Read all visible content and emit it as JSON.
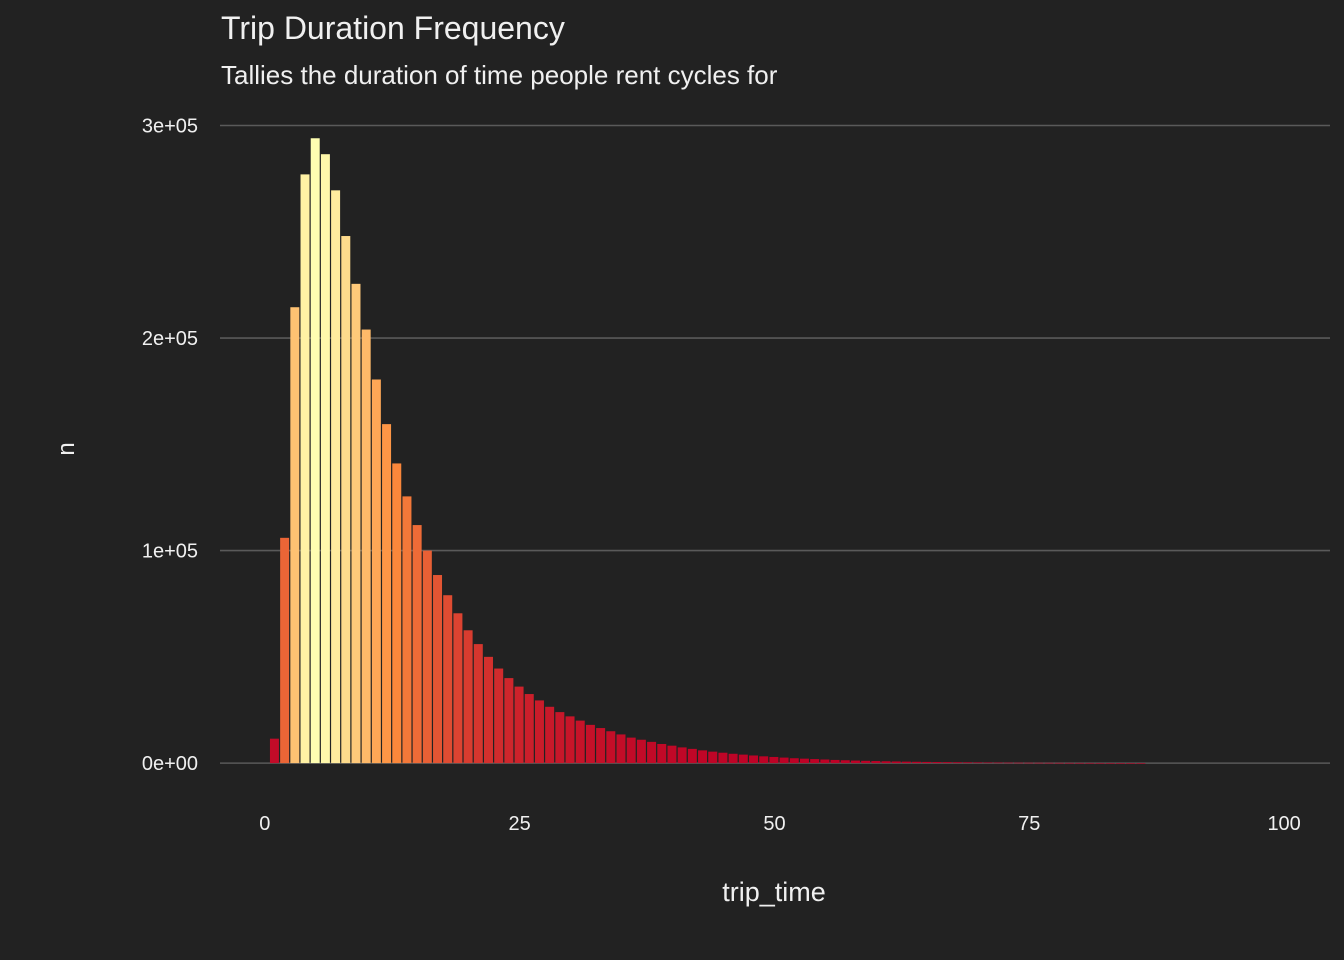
{
  "chart_data": {
    "type": "bar",
    "title": "Trip Duration Frequency",
    "subtitle": "Tallies the duration of time people rent cycles for",
    "xlabel": "trip_time",
    "ylabel": "n",
    "xlim": [
      -4.4,
      104.5
    ],
    "ylim": [
      -15000,
      312000
    ],
    "grid": {
      "horizontal_major": true,
      "vertical": false
    },
    "legend": "none",
    "x_ticks": [
      {
        "value": 0,
        "label": "0"
      },
      {
        "value": 25,
        "label": "25"
      },
      {
        "value": 50,
        "label": "50"
      },
      {
        "value": 75,
        "label": "75"
      },
      {
        "value": 100,
        "label": "100"
      }
    ],
    "y_ticks": [
      {
        "value": 0,
        "label": "0e+00"
      },
      {
        "value": 100000,
        "label": "1e+05"
      },
      {
        "value": 200000,
        "label": "2e+05"
      },
      {
        "value": 300000,
        "label": "3e+05"
      }
    ],
    "fill_scale": {
      "low_color": "#bd0026",
      "mid_color": "#fd8d3c",
      "high_color": "#ffffb2",
      "domain": [
        0,
        295000
      ]
    },
    "x": [
      1,
      2,
      3,
      4,
      5,
      6,
      7,
      8,
      9,
      10,
      11,
      12,
      13,
      14,
      15,
      16,
      17,
      18,
      19,
      20,
      21,
      22,
      23,
      24,
      25,
      26,
      27,
      28,
      29,
      30,
      31,
      32,
      33,
      34,
      35,
      36,
      37,
      38,
      39,
      40,
      41,
      42,
      43,
      44,
      45,
      46,
      47,
      48,
      49,
      50,
      51,
      52,
      53,
      54,
      55,
      56,
      57,
      58,
      59,
      60,
      61,
      62,
      63,
      64,
      65,
      66,
      67,
      68,
      69,
      70,
      71,
      72,
      73,
      74,
      75,
      76,
      77,
      78,
      79,
      80,
      81,
      82,
      83,
      84,
      85,
      86
    ],
    "values": [
      11500,
      106000,
      214500,
      277000,
      294000,
      286500,
      269500,
      248000,
      225500,
      204000,
      180500,
      159500,
      141000,
      125500,
      112000,
      100000,
      88500,
      79000,
      70500,
      62500,
      56000,
      50000,
      44500,
      40000,
      36000,
      32500,
      29500,
      26500,
      24000,
      22000,
      20000,
      18000,
      16500,
      15000,
      13500,
      12000,
      11000,
      10000,
      9000,
      8200,
      7400,
      6700,
      6000,
      5400,
      4900,
      4400,
      4000,
      3600,
      3200,
      2900,
      2600,
      2300,
      2100,
      1900,
      1700,
      1500,
      1350,
      1200,
      1080,
      970,
      870,
      780,
      700,
      630,
      560,
      500,
      450,
      400,
      360,
      320,
      285,
      255,
      225,
      200,
      180,
      160,
      140,
      125,
      110,
      98,
      87,
      77,
      68,
      60,
      53,
      47
    ]
  }
}
